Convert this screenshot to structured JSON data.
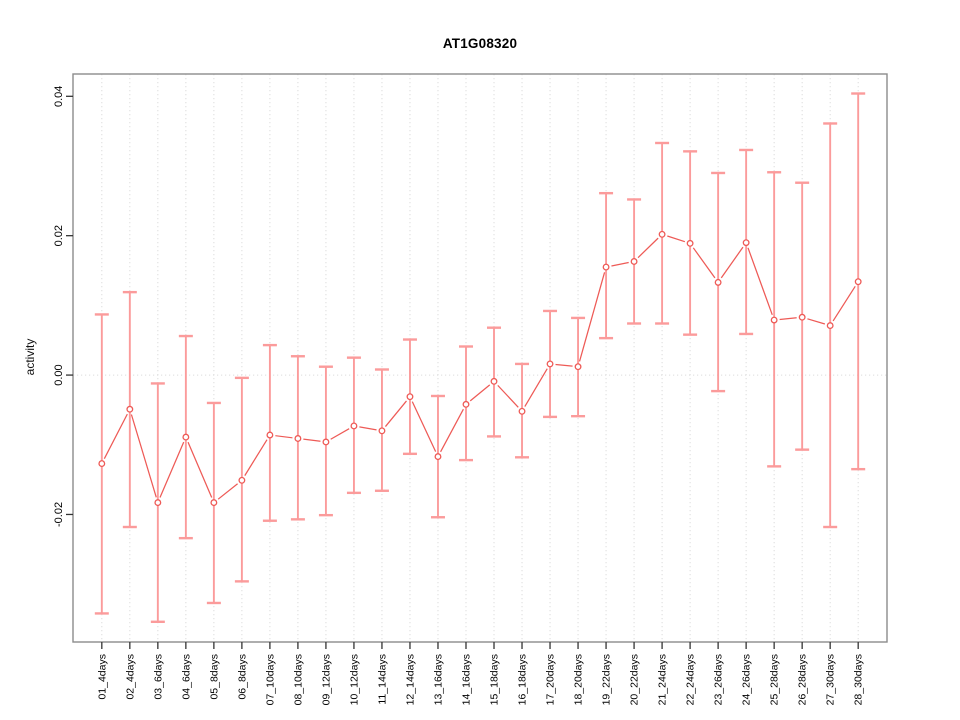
{
  "window": {
    "background": "#ffffff"
  },
  "chart_data": {
    "type": "line",
    "title": "AT1G08320",
    "xlabel": "",
    "ylabel": "activity",
    "legend_position": "none",
    "grid": {
      "vertical_dotted": true,
      "zero_line_dotted": true
    },
    "ylim": [
      -0.0383,
      0.0432
    ],
    "y_ticks": [
      {
        "value": -0.02,
        "label": "-0.02"
      },
      {
        "value": 0.0,
        "label": "0.00"
      },
      {
        "value": 0.02,
        "label": "0.02"
      },
      {
        "value": 0.04,
        "label": "0.04"
      }
    ],
    "categories": [
      "01_4days",
      "02_4days",
      "03_6days",
      "04_6days",
      "05_8days",
      "06_8days",
      "07_10days",
      "08_10days",
      "09_12days",
      "10_12days",
      "11_14days",
      "12_14days",
      "13_16days",
      "14_16days",
      "15_18days",
      "16_18days",
      "17_20days",
      "18_20days",
      "19_22days",
      "20_22days",
      "21_24days",
      "22_24days",
      "23_26days",
      "24_26days",
      "25_28days",
      "26_28days",
      "27_30days",
      "28_30days"
    ],
    "series": [
      {
        "name": "activity",
        "marker": "open-circle",
        "values": [
          -0.0127,
          -0.0049,
          -0.0183,
          -0.0089,
          -0.0183,
          -0.0151,
          -0.0086,
          -0.0091,
          -0.0096,
          -0.0073,
          -0.008,
          -0.0031,
          -0.0117,
          -0.0042,
          -0.0009,
          -0.0052,
          0.0016,
          0.0012,
          0.0155,
          0.0163,
          0.0202,
          0.0189,
          0.0133,
          0.019,
          0.0079,
          0.0083,
          0.0071,
          0.0134
        ],
        "upper": [
          0.0087,
          0.0119,
          -0.0012,
          0.0056,
          -0.004,
          -0.0004,
          0.0043,
          0.0027,
          0.0012,
          0.0025,
          0.0008,
          0.0051,
          -0.003,
          0.0041,
          0.0068,
          0.0016,
          0.0092,
          0.0082,
          0.0261,
          0.0252,
          0.0333,
          0.0321,
          0.029,
          0.0323,
          0.0291,
          0.0276,
          0.0361,
          0.0404
        ],
        "lower": [
          -0.0342,
          -0.0218,
          -0.0354,
          -0.0234,
          -0.0327,
          -0.0296,
          -0.0209,
          -0.0207,
          -0.0201,
          -0.0169,
          -0.0166,
          -0.0113,
          -0.0204,
          -0.0122,
          -0.0088,
          -0.0118,
          -0.006,
          -0.0059,
          0.0053,
          0.0074,
          0.0074,
          0.0058,
          -0.0023,
          0.0059,
          -0.0131,
          -0.0107,
          -0.0218,
          -0.0135
        ]
      }
    ],
    "colors": {
      "point_line": "#ee5a56",
      "error_bar": "#fb9b9b",
      "grid": "#dcdcdc",
      "zero_line": "#dcdcdc",
      "box": "#8c8c8c",
      "tick": "#333333",
      "text": "#000000"
    }
  }
}
